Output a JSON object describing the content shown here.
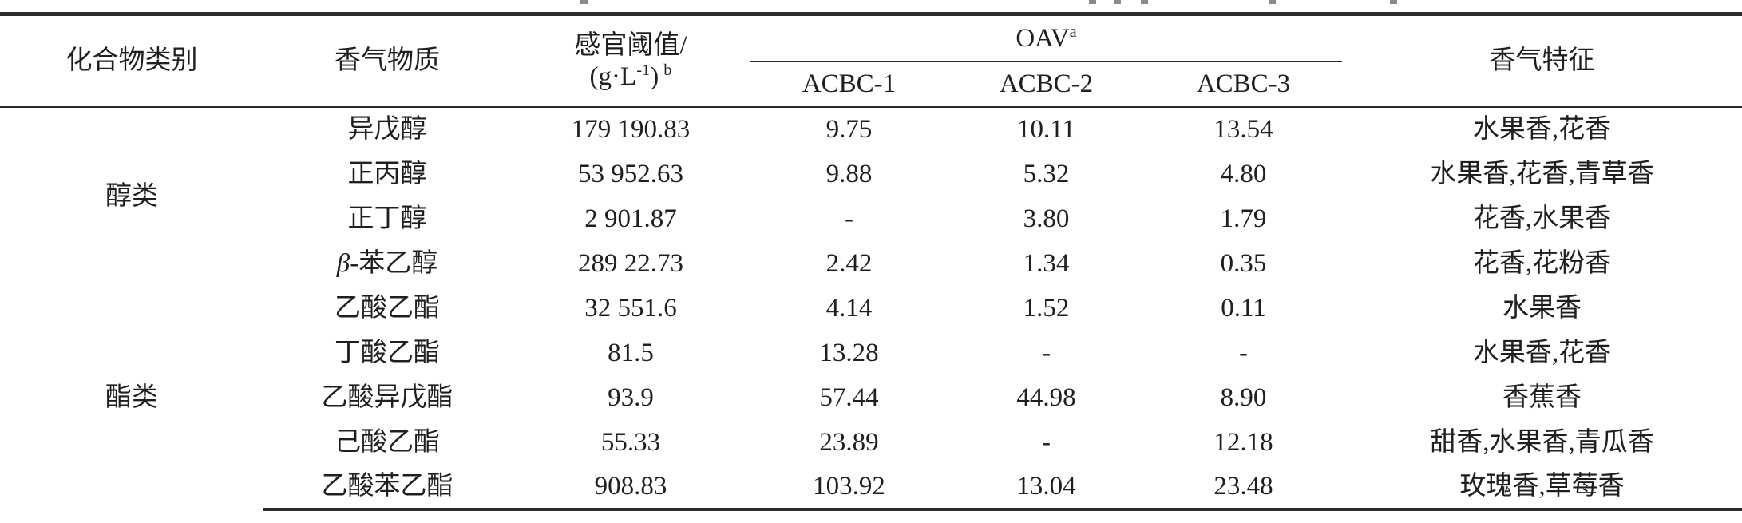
{
  "table": {
    "header": {
      "category": "化合物类别",
      "compound": "香气物质",
      "threshold_line1": "感官阈值/",
      "threshold_unit_open": "(g·L",
      "threshold_unit_exp": "-1",
      "threshold_unit_close": ")",
      "threshold_note": "b",
      "oav": "OAV",
      "oav_note": "a",
      "sample1": "ACBC-1",
      "sample2": "ACBC-2",
      "sample3": "ACBC-3",
      "feature": "香气特征"
    },
    "categories": [
      {
        "label": "醇类",
        "rows_spanned": 4
      },
      {
        "label": "酯类",
        "rows_spanned": 5
      }
    ],
    "rows": [
      {
        "greek": "",
        "name": "异戊醇",
        "threshold": "179 190.83",
        "acbc1": "9.75",
        "acbc2": "10.11",
        "acbc3": "13.54",
        "feature": "水果香,花香"
      },
      {
        "greek": "",
        "name": "正丙醇",
        "threshold": "53 952.63",
        "acbc1": "9.88",
        "acbc2": "5.32",
        "acbc3": "4.80",
        "feature": "水果香,花香,青草香"
      },
      {
        "greek": "",
        "name": "正丁醇",
        "threshold": "2 901.87",
        "acbc1": "-",
        "acbc2": "3.80",
        "acbc3": "1.79",
        "feature": "花香,水果香"
      },
      {
        "greek": "β",
        "name": "-苯乙醇",
        "threshold": "289 22.73",
        "acbc1": "2.42",
        "acbc2": "1.34",
        "acbc3": "0.35",
        "feature": "花香,花粉香"
      },
      {
        "greek": "",
        "name": "乙酸乙酯",
        "threshold": "32 551.6",
        "acbc1": "4.14",
        "acbc2": "1.52",
        "acbc3": "0.11",
        "feature": "水果香"
      },
      {
        "greek": "",
        "name": "丁酸乙酯",
        "threshold": "81.5",
        "acbc1": "13.28",
        "acbc2": "-",
        "acbc3": "-",
        "feature": "水果香,花香"
      },
      {
        "greek": "",
        "name": "乙酸异戊酯",
        "threshold": "93.9",
        "acbc1": "57.44",
        "acbc2": "44.98",
        "acbc3": "8.90",
        "feature": "香蕉香"
      },
      {
        "greek": "",
        "name": "己酸乙酯",
        "threshold": "55.33",
        "acbc1": "23.89",
        "acbc2": "-",
        "acbc3": "12.18",
        "feature": "甜香,水果香,青瓜香"
      },
      {
        "greek": "",
        "name": "乙酸苯乙酯",
        "threshold": "908.83",
        "acbc1": "103.92",
        "acbc2": "13.04",
        "acbc3": "23.48",
        "feature": "玫瑰香,草莓香"
      }
    ]
  },
  "colors": {
    "text": "#1f1f1f",
    "rule": "#2c2c2c",
    "background": "#ffffff"
  }
}
